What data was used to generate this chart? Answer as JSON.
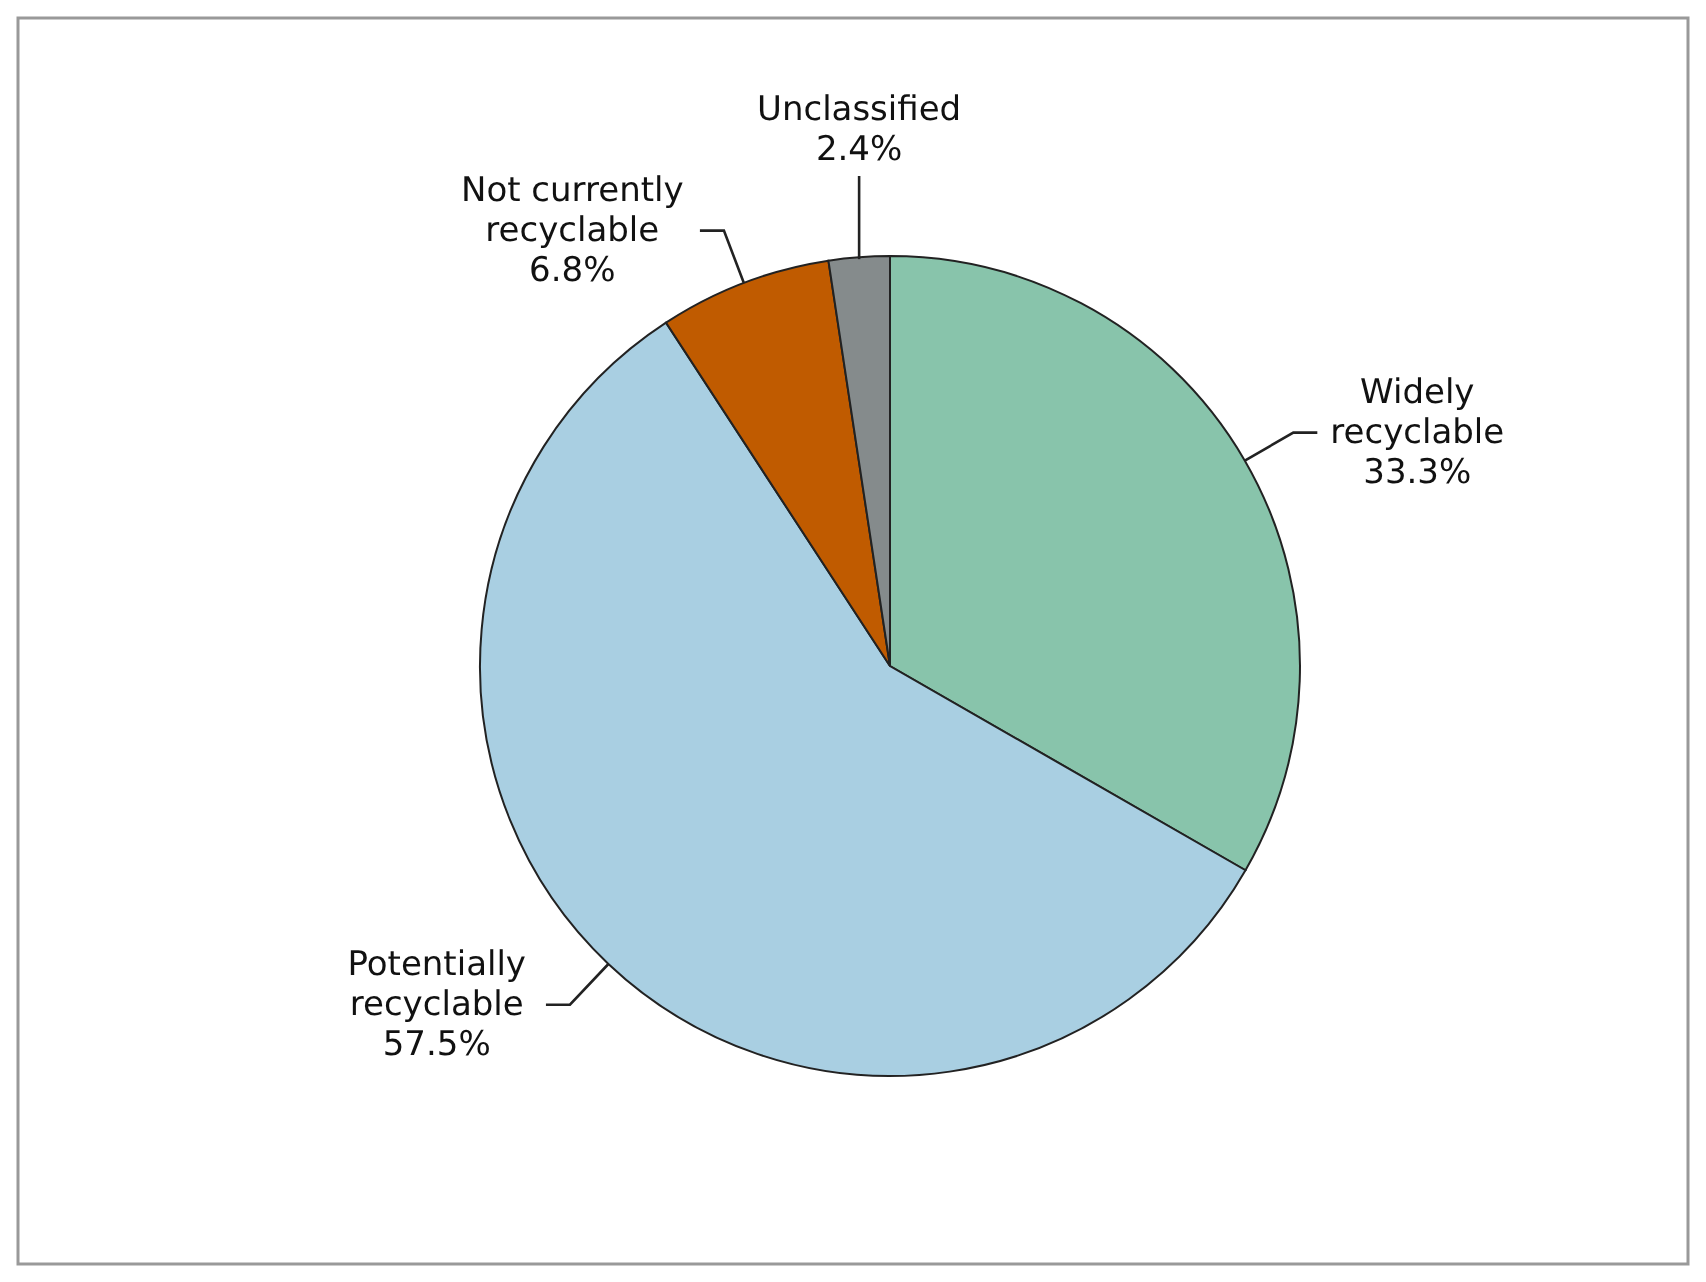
{
  "chart_data": {
    "type": "pie",
    "categories": [
      "Widely recyclable",
      "Potentially recyclable",
      "Not currently recyclable",
      "Unclassified"
    ],
    "values": [
      33.3,
      57.5,
      6.8,
      2.4
    ],
    "colors": [
      "#88c4ab",
      "#a9cfe2",
      "#c05b00",
      "#858b8c"
    ],
    "value_labels": [
      "33.3%",
      "57.5%",
      "6.8%",
      "2.4%"
    ]
  }
}
